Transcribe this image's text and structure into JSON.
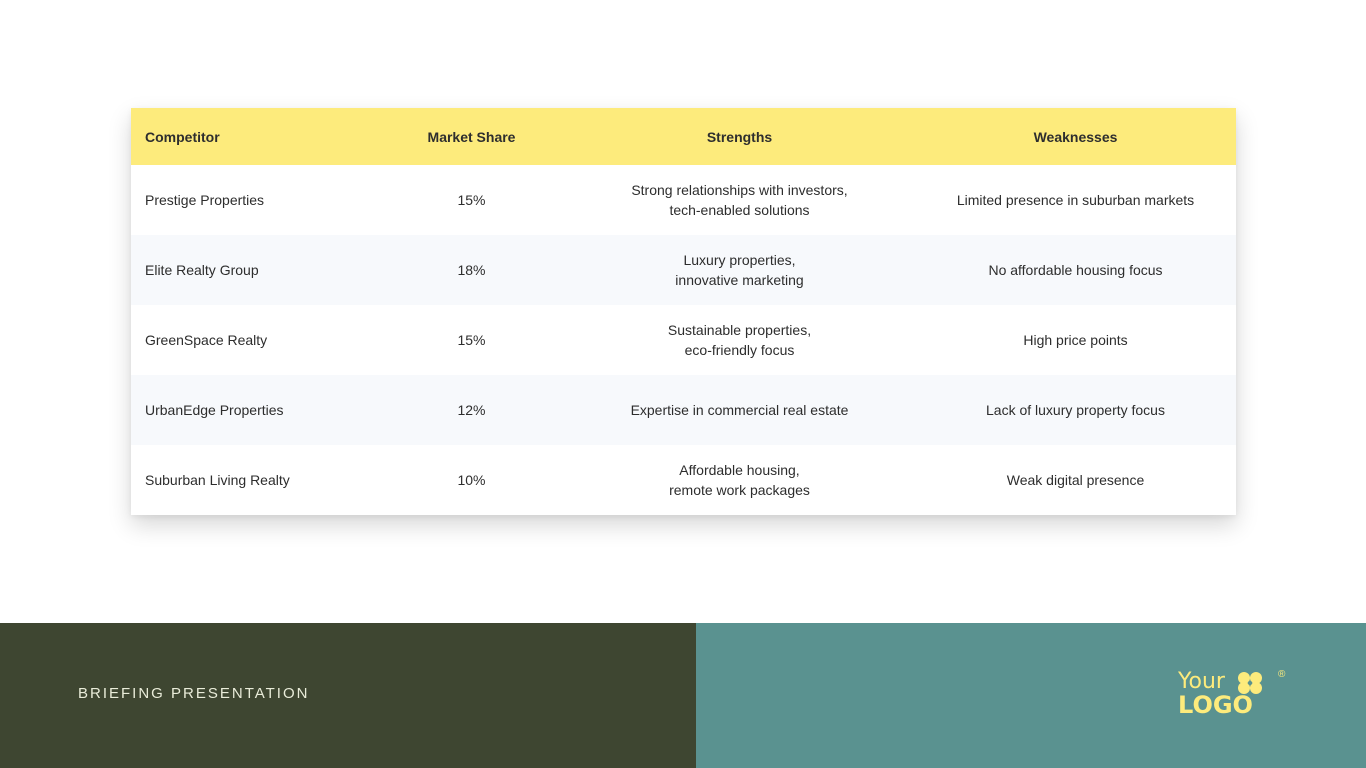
{
  "table": {
    "headers": [
      "Competitor",
      "Market Share",
      "Strengths",
      "Weaknesses"
    ],
    "rows": [
      {
        "competitor": "Prestige Properties",
        "share": "15%",
        "strengths": [
          "Strong relationships with investors,",
          "tech-enabled solutions"
        ],
        "weakness": "Limited presence in suburban markets"
      },
      {
        "competitor": "Elite Realty Group",
        "share": "18%",
        "strengths": [
          "Luxury properties,",
          "innovative marketing"
        ],
        "weakness": "No affordable housing focus"
      },
      {
        "competitor": "GreenSpace Realty",
        "share": "15%",
        "strengths": [
          "Sustainable properties,",
          "eco-friendly focus"
        ],
        "weakness": "High price points"
      },
      {
        "competitor": "UrbanEdge Properties",
        "share": "12%",
        "strengths": [
          "Expertise in commercial real estate"
        ],
        "weakness": "Lack of luxury property focus"
      },
      {
        "competitor": "Suburban Living Realty",
        "share": "10%",
        "strengths": [
          "Affordable housing,",
          "remote work packages"
        ],
        "weakness": "Weak digital presence"
      }
    ]
  },
  "footer": {
    "label": "BRIEFING PRESENTATION",
    "logo_line1": "Your",
    "logo_line2": "LOGO",
    "logo_registered": "®"
  },
  "colors": {
    "header_bg": "#fdeb7c",
    "footer_left_bg": "#3e4631",
    "footer_right_bg": "#5a9290",
    "logo": "#fdeb7c"
  }
}
